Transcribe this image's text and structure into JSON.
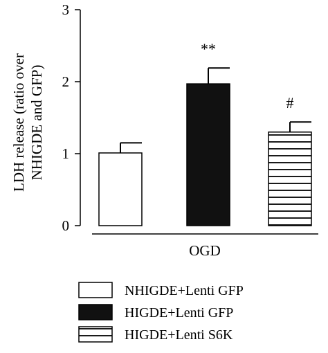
{
  "chart_data": {
    "type": "bar",
    "ylabel_line1": "LDH release (ratio over",
    "ylabel_line2": "NHIGDE and GFP)",
    "xgroup_label": "OGD",
    "ylim": [
      0,
      3
    ],
    "yticks": [
      "0",
      "1",
      "2",
      "3"
    ],
    "bars": [
      {
        "name": "NHIGDE+Lenti GFP",
        "value": 1.01,
        "error": 0.14,
        "annotation": "",
        "pattern": "white"
      },
      {
        "name": "HIGDE+Lenti GFP",
        "value": 1.97,
        "error": 0.22,
        "annotation": "**",
        "pattern": "black"
      },
      {
        "name": "HIGDE+Lenti S6K",
        "value": 1.3,
        "error": 0.14,
        "annotation": "#",
        "pattern": "stripes"
      }
    ],
    "legend": [
      {
        "label": "NHIGDE+Lenti GFP",
        "pattern": "white"
      },
      {
        "label": "HIGDE+Lenti GFP",
        "pattern": "black"
      },
      {
        "label": "HIGDE+Lenti S6K",
        "pattern": "stripes"
      }
    ],
    "colors": {
      "bar_outline": "#000000",
      "black_fill": "#111111",
      "white_fill": "#ffffff"
    }
  }
}
